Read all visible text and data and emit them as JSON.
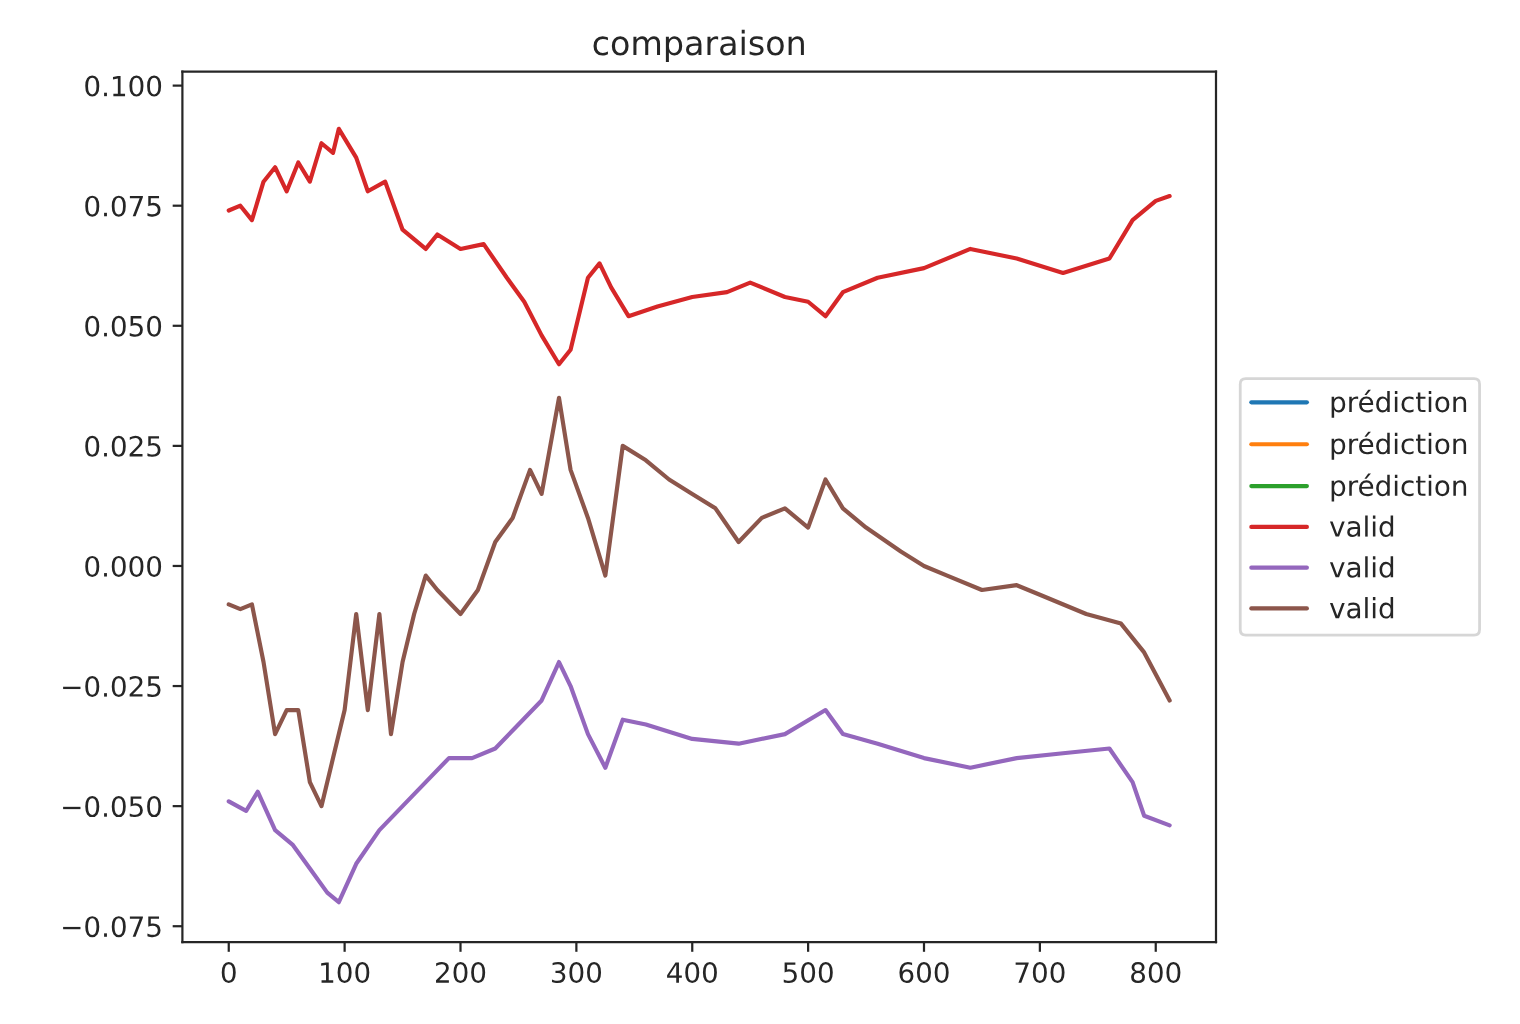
{
  "chart_data": {
    "type": "line",
    "title": "comparaison",
    "xlim": [
      -40,
      852
    ],
    "ylim": [
      -0.0783,
      0.1029
    ],
    "xticks": [
      0,
      100,
      200,
      300,
      400,
      500,
      600,
      700,
      800
    ],
    "yticks": [
      {
        "value": -0.075,
        "label": "−0.075"
      },
      {
        "value": -0.05,
        "label": "−0.050"
      },
      {
        "value": -0.025,
        "label": "−0.025"
      },
      {
        "value": 0,
        "label": "0.000"
      },
      {
        "value": 0.025,
        "label": "0.025"
      },
      {
        "value": 0.05,
        "label": "0.050"
      },
      {
        "value": 0.075,
        "label": "0.075"
      },
      {
        "value": 0.1,
        "label": "0.100"
      }
    ],
    "grid": false,
    "legend": "right",
    "marker": "none",
    "line_style": "solid",
    "series": [
      {
        "name": "prédiction",
        "color": "#1f77b4"
      },
      {
        "name": "prédiction",
        "color": "#ff7f0e"
      },
      {
        "name": "prédiction",
        "color": "#2ca02c"
      },
      {
        "name": "valid",
        "color": "#d62728",
        "x": [
          0,
          10,
          20,
          30,
          40,
          50,
          60,
          70,
          80,
          90,
          95,
          110,
          120,
          135,
          150,
          170,
          180,
          200,
          220,
          240,
          255,
          270,
          285,
          295,
          310,
          320,
          330,
          345,
          370,
          400,
          430,
          450,
          480,
          500,
          515,
          530,
          560,
          600,
          640,
          680,
          720,
          760,
          780,
          800,
          812
        ],
        "values": [
          0.074,
          0.075,
          0.072,
          0.08,
          0.083,
          0.078,
          0.084,
          0.08,
          0.088,
          0.086,
          0.091,
          0.085,
          0.078,
          0.08,
          0.07,
          0.066,
          0.069,
          0.066,
          0.067,
          0.06,
          0.055,
          0.048,
          0.042,
          0.045,
          0.06,
          0.063,
          0.058,
          0.052,
          0.054,
          0.056,
          0.057,
          0.059,
          0.056,
          0.055,
          0.052,
          0.057,
          0.06,
          0.062,
          0.066,
          0.064,
          0.061,
          0.064,
          0.072,
          0.076,
          0.077
        ]
      },
      {
        "name": "valid",
        "color": "#9467bd",
        "x": [
          0,
          15,
          25,
          40,
          55,
          70,
          85,
          95,
          110,
          130,
          150,
          170,
          190,
          210,
          230,
          250,
          270,
          285,
          295,
          310,
          325,
          340,
          360,
          400,
          440,
          480,
          515,
          530,
          560,
          600,
          640,
          680,
          720,
          760,
          780,
          790,
          812
        ],
        "values": [
          -0.049,
          -0.051,
          -0.047,
          -0.055,
          -0.058,
          -0.063,
          -0.068,
          -0.07,
          -0.062,
          -0.055,
          -0.05,
          -0.045,
          -0.04,
          -0.04,
          -0.038,
          -0.033,
          -0.028,
          -0.02,
          -0.025,
          -0.035,
          -0.042,
          -0.032,
          -0.033,
          -0.036,
          -0.037,
          -0.035,
          -0.03,
          -0.035,
          -0.037,
          -0.04,
          -0.042,
          -0.04,
          -0.039,
          -0.038,
          -0.045,
          -0.052,
          -0.054
        ]
      },
      {
        "name": "valid",
        "color": "#8c564b",
        "x": [
          0,
          10,
          20,
          30,
          40,
          50,
          60,
          70,
          80,
          90,
          100,
          110,
          120,
          130,
          140,
          150,
          160,
          170,
          180,
          200,
          215,
          230,
          245,
          260,
          270,
          285,
          295,
          310,
          325,
          340,
          360,
          380,
          400,
          420,
          440,
          460,
          480,
          500,
          515,
          530,
          550,
          580,
          600,
          620,
          650,
          680,
          700,
          740,
          770,
          790,
          812
        ],
        "values": [
          -0.008,
          -0.009,
          -0.008,
          -0.02,
          -0.035,
          -0.03,
          -0.03,
          -0.045,
          -0.05,
          -0.04,
          -0.03,
          -0.01,
          -0.03,
          -0.01,
          -0.035,
          -0.02,
          -0.01,
          -0.002,
          -0.005,
          -0.01,
          -0.005,
          0.005,
          0.01,
          0.02,
          0.015,
          0.035,
          0.02,
          0.01,
          -0.002,
          0.025,
          0.022,
          0.018,
          0.015,
          0.012,
          0.005,
          0.01,
          0.012,
          0.008,
          0.018,
          0.012,
          0.008,
          0.003,
          0.0,
          -0.002,
          -0.005,
          -0.004,
          -0.006,
          -0.01,
          -0.012,
          -0.018,
          -0.028
        ]
      }
    ]
  }
}
